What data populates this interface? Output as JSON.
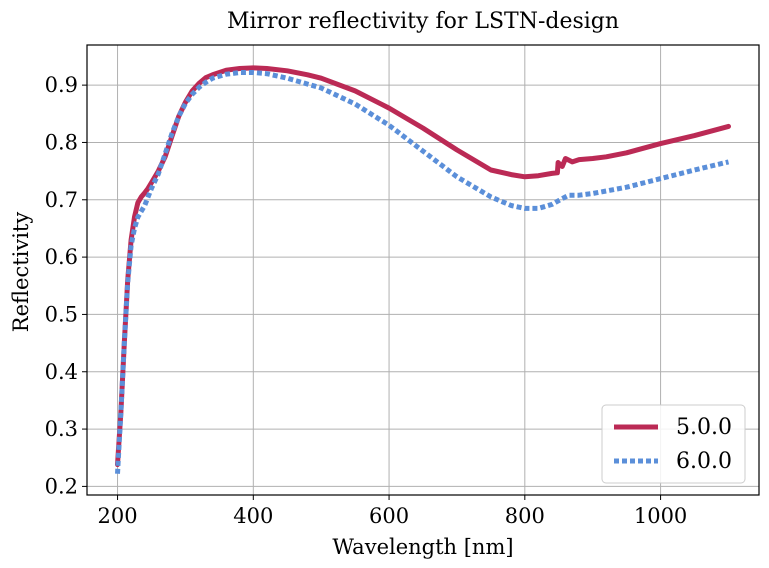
{
  "chart_data": {
    "type": "line",
    "title": "Mirror reflectivity for LSTN-design",
    "xlabel": "Wavelength [nm]",
    "ylabel": "Reflectivity",
    "xlim": [
      155,
      1145
    ],
    "ylim": [
      0.185,
      0.97
    ],
    "xticks": [
      200,
      400,
      600,
      800,
      1000
    ],
    "xtick_labels": [
      "200",
      "400",
      "600",
      "800",
      "1000"
    ],
    "yticks": [
      0.2,
      0.3,
      0.4,
      0.5,
      0.6,
      0.7,
      0.8,
      0.9
    ],
    "ytick_labels": [
      "0.2",
      "0.3",
      "0.4",
      "0.5",
      "0.6",
      "0.7",
      "0.8",
      "0.9"
    ],
    "grid": true,
    "legend_position": "bottom-right",
    "series": [
      {
        "name": "5.0.0",
        "color": "#bb2a55",
        "style": "solid",
        "points": [
          [
            200,
            0.238
          ],
          [
            205,
            0.33
          ],
          [
            210,
            0.45
          ],
          [
            215,
            0.56
          ],
          [
            220,
            0.63
          ],
          [
            225,
            0.67
          ],
          [
            230,
            0.695
          ],
          [
            235,
            0.705
          ],
          [
            240,
            0.712
          ],
          [
            245,
            0.72
          ],
          [
            250,
            0.73
          ],
          [
            260,
            0.75
          ],
          [
            270,
            0.775
          ],
          [
            280,
            0.81
          ],
          [
            290,
            0.845
          ],
          [
            300,
            0.87
          ],
          [
            310,
            0.89
          ],
          [
            320,
            0.903
          ],
          [
            330,
            0.913
          ],
          [
            340,
            0.918
          ],
          [
            350,
            0.922
          ],
          [
            360,
            0.926
          ],
          [
            380,
            0.929
          ],
          [
            400,
            0.93
          ],
          [
            420,
            0.929
          ],
          [
            450,
            0.925
          ],
          [
            480,
            0.918
          ],
          [
            500,
            0.912
          ],
          [
            550,
            0.89
          ],
          [
            600,
            0.86
          ],
          [
            650,
            0.825
          ],
          [
            700,
            0.787
          ],
          [
            750,
            0.752
          ],
          [
            780,
            0.744
          ],
          [
            800,
            0.74
          ],
          [
            820,
            0.742
          ],
          [
            840,
            0.746
          ],
          [
            848,
            0.747
          ],
          [
            849,
            0.765
          ],
          [
            855,
            0.758
          ],
          [
            860,
            0.772
          ],
          [
            870,
            0.766
          ],
          [
            880,
            0.77
          ],
          [
            900,
            0.772
          ],
          [
            920,
            0.775
          ],
          [
            950,
            0.782
          ],
          [
            1000,
            0.798
          ],
          [
            1050,
            0.812
          ],
          [
            1100,
            0.828
          ]
        ]
      },
      {
        "name": "6.0.0",
        "color": "#5b8fd9",
        "style": "dotted",
        "points": [
          [
            200,
            0.222
          ],
          [
            205,
            0.33
          ],
          [
            210,
            0.45
          ],
          [
            215,
            0.555
          ],
          [
            220,
            0.62
          ],
          [
            225,
            0.65
          ],
          [
            230,
            0.67
          ],
          [
            240,
            0.69
          ],
          [
            250,
            0.72
          ],
          [
            260,
            0.745
          ],
          [
            270,
            0.78
          ],
          [
            280,
            0.815
          ],
          [
            290,
            0.845
          ],
          [
            300,
            0.868
          ],
          [
            310,
            0.884
          ],
          [
            320,
            0.896
          ],
          [
            330,
            0.905
          ],
          [
            340,
            0.912
          ],
          [
            360,
            0.919
          ],
          [
            380,
            0.922
          ],
          [
            400,
            0.922
          ],
          [
            420,
            0.92
          ],
          [
            450,
            0.912
          ],
          [
            500,
            0.895
          ],
          [
            550,
            0.867
          ],
          [
            600,
            0.83
          ],
          [
            650,
            0.785
          ],
          [
            700,
            0.74
          ],
          [
            750,
            0.705
          ],
          [
            780,
            0.69
          ],
          [
            800,
            0.685
          ],
          [
            820,
            0.685
          ],
          [
            840,
            0.692
          ],
          [
            855,
            0.702
          ],
          [
            865,
            0.708
          ],
          [
            880,
            0.708
          ],
          [
            900,
            0.711
          ],
          [
            950,
            0.722
          ],
          [
            1000,
            0.737
          ],
          [
            1050,
            0.752
          ],
          [
            1100,
            0.766
          ]
        ]
      }
    ]
  }
}
